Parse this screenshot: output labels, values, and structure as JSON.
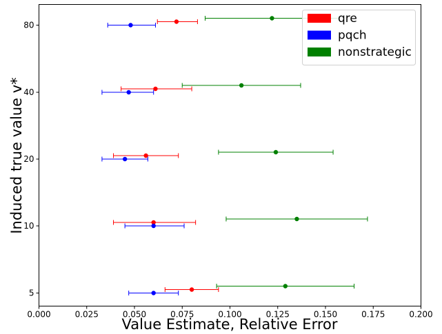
{
  "chart_data": {
    "type": "scatter",
    "xlabel": "Value Estimate, Relative Error",
    "ylabel": "Induced true value v*",
    "xlim": [
      0.0,
      0.2
    ],
    "x_ticks": [
      "0.000",
      "0.025",
      "0.050",
      "0.075",
      "0.100",
      "0.125",
      "0.150",
      "0.175",
      "0.200"
    ],
    "x_tick_values": [
      0.0,
      0.025,
      0.05,
      0.075,
      0.1,
      0.125,
      0.15,
      0.175,
      0.2
    ],
    "categories": [
      "5",
      "10",
      "20",
      "40",
      "80"
    ],
    "grid": false,
    "legend_position": "top-right",
    "series": [
      {
        "name": "qre",
        "color": "#ff0000",
        "points": [
          {
            "category": "5",
            "x": 0.08,
            "low": 0.066,
            "high": 0.094
          },
          {
            "category": "10",
            "x": 0.06,
            "low": 0.039,
            "high": 0.082
          },
          {
            "category": "20",
            "x": 0.056,
            "low": 0.039,
            "high": 0.073
          },
          {
            "category": "40",
            "x": 0.061,
            "low": 0.043,
            "high": 0.08
          },
          {
            "category": "80",
            "x": 0.072,
            "low": 0.062,
            "high": 0.083
          }
        ]
      },
      {
        "name": "pqch",
        "color": "#0000ff",
        "points": [
          {
            "category": "5",
            "x": 0.06,
            "low": 0.047,
            "high": 0.073
          },
          {
            "category": "10",
            "x": 0.06,
            "low": 0.045,
            "high": 0.076
          },
          {
            "category": "20",
            "x": 0.045,
            "low": 0.033,
            "high": 0.057
          },
          {
            "category": "40",
            "x": 0.047,
            "low": 0.033,
            "high": 0.06
          },
          {
            "category": "80",
            "x": 0.048,
            "low": 0.036,
            "high": 0.061
          }
        ]
      },
      {
        "name": "nonstrategic",
        "color": "#008000",
        "points": [
          {
            "category": "5",
            "x": 0.129,
            "low": 0.093,
            "high": 0.165
          },
          {
            "category": "10",
            "x": 0.135,
            "low": 0.098,
            "high": 0.172
          },
          {
            "category": "20",
            "x": 0.124,
            "low": 0.094,
            "high": 0.154
          },
          {
            "category": "40",
            "x": 0.106,
            "low": 0.075,
            "high": 0.137
          },
          {
            "category": "80",
            "x": 0.122,
            "low": 0.087,
            "high": 0.157
          }
        ]
      }
    ]
  }
}
